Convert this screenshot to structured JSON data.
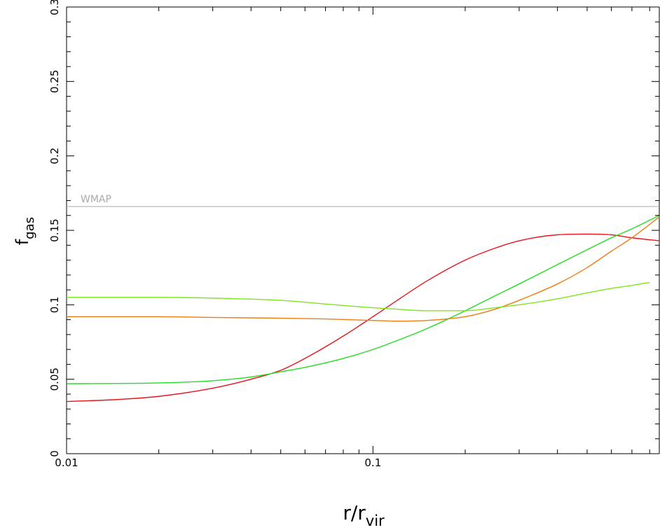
{
  "chart_data": {
    "type": "line",
    "title": "",
    "xlabel": {
      "main": "r/r",
      "sub": "vir"
    },
    "ylabel": {
      "main": "f",
      "sub": "gas"
    },
    "xscale": "log",
    "xlim": [
      0.01,
      0.86
    ],
    "ylim": [
      0,
      0.3
    ],
    "x_ticks": [
      {
        "value": 0.01,
        "label": "0.01"
      },
      {
        "value": 0.1,
        "label": "0.1"
      }
    ],
    "y_ticks": [
      {
        "value": 0,
        "label": "0"
      },
      {
        "value": 0.05,
        "label": "0.05"
      },
      {
        "value": 0.1,
        "label": "0.1"
      },
      {
        "value": 0.15,
        "label": "0.15"
      },
      {
        "value": 0.2,
        "label": "0.2"
      },
      {
        "value": 0.25,
        "label": "0.25"
      },
      {
        "value": 0.3,
        "label": "0.3"
      }
    ],
    "grid": false,
    "reference_line": {
      "label": "WMAP",
      "y": 0.166,
      "color": "#aaaaaa"
    },
    "series": [
      {
        "color": "#e8141c",
        "x": [
          0.01,
          0.015,
          0.02,
          0.03,
          0.04,
          0.05,
          0.06,
          0.08,
          0.1,
          0.12,
          0.15,
          0.2,
          0.25,
          0.3,
          0.4,
          0.5,
          0.6,
          0.7,
          0.86
        ],
        "y": [
          0.035,
          0.0365,
          0.0385,
          0.044,
          0.05,
          0.056,
          0.064,
          0.079,
          0.092,
          0.103,
          0.116,
          0.13,
          0.138,
          0.143,
          0.147,
          0.1475,
          0.147,
          0.145,
          0.143
        ]
      },
      {
        "color": "#22dd22",
        "x": [
          0.01,
          0.02,
          0.03,
          0.04,
          0.05,
          0.06,
          0.08,
          0.1,
          0.12,
          0.15,
          0.2,
          0.25,
          0.3,
          0.4,
          0.5,
          0.6,
          0.7,
          0.86
        ],
        "y": [
          0.047,
          0.0475,
          0.049,
          0.0515,
          0.055,
          0.058,
          0.064,
          0.07,
          0.076,
          0.084,
          0.096,
          0.106,
          0.114,
          0.127,
          0.137,
          0.145,
          0.151,
          0.16
        ]
      },
      {
        "color": "#f07d14",
        "x": [
          0.01,
          0.02,
          0.03,
          0.05,
          0.07,
          0.1,
          0.12,
          0.15,
          0.2,
          0.25,
          0.3,
          0.4,
          0.5,
          0.6,
          0.7,
          0.86
        ],
        "y": [
          0.092,
          0.092,
          0.0915,
          0.091,
          0.0905,
          0.0895,
          0.089,
          0.0895,
          0.092,
          0.097,
          0.103,
          0.114,
          0.125,
          0.136,
          0.145,
          0.159
        ]
      },
      {
        "color": "#7ee61e",
        "x": [
          0.01,
          0.02,
          0.03,
          0.05,
          0.07,
          0.1,
          0.12,
          0.15,
          0.2,
          0.25,
          0.3,
          0.4,
          0.5,
          0.6,
          0.7,
          0.8
        ],
        "y": [
          0.105,
          0.105,
          0.1045,
          0.103,
          0.1005,
          0.098,
          0.097,
          0.096,
          0.096,
          0.098,
          0.1,
          0.104,
          0.108,
          0.111,
          0.113,
          0.115
        ]
      }
    ]
  }
}
